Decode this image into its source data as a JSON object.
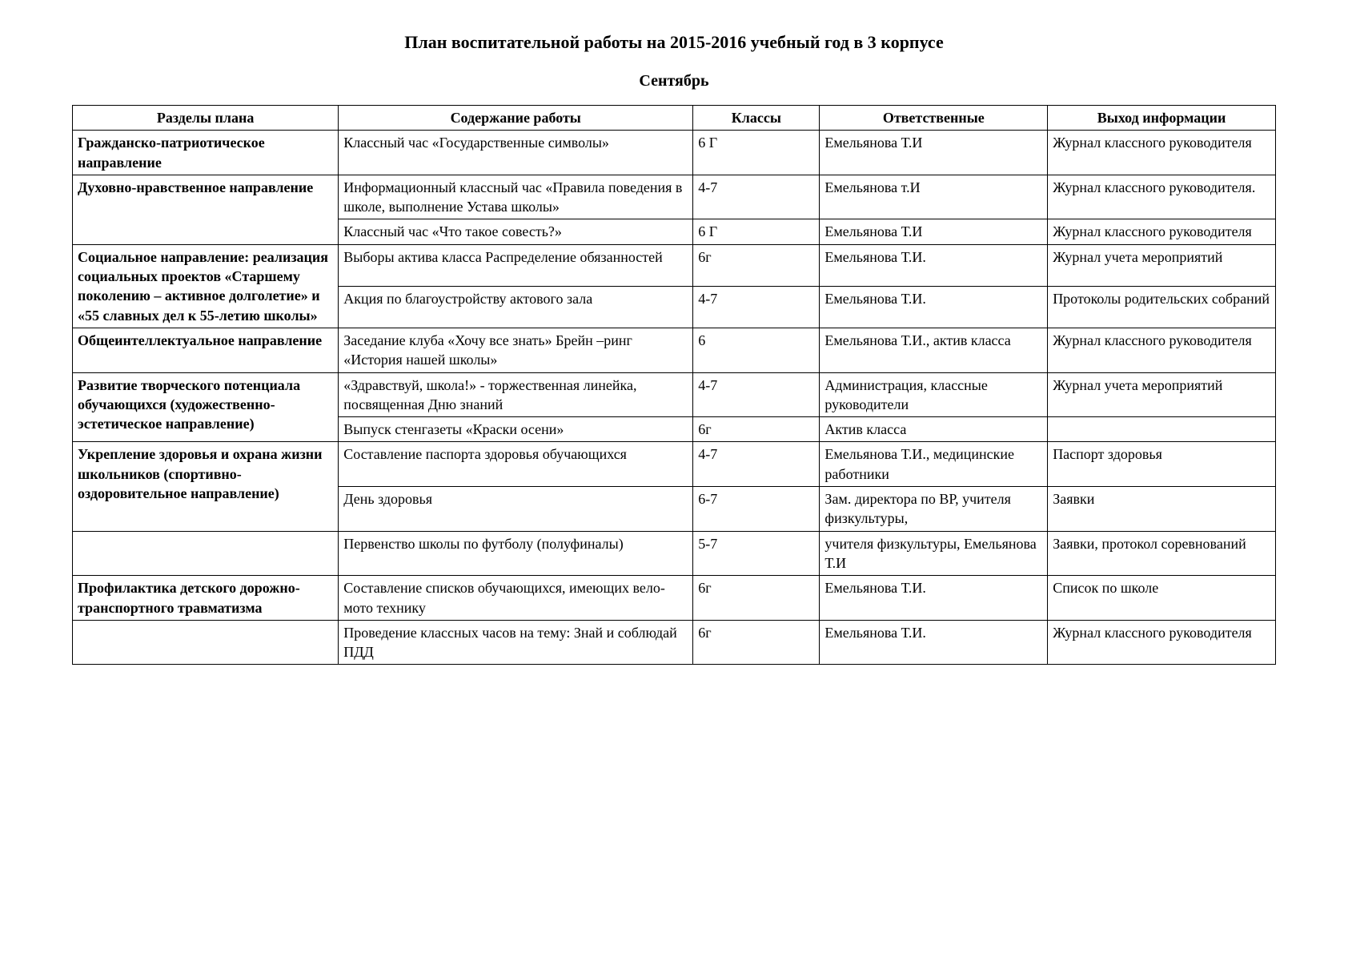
{
  "title": "План воспитательной работы на 2015-2016 учебный год в 3 корпусе",
  "month": "Сентябрь",
  "headers": {
    "section": "Разделы плана",
    "content": "Содержание работы",
    "classes": "Классы",
    "responsible": "Ответственные",
    "output": "Выход информации"
  },
  "sections": [
    {
      "name": "Гражданско-патриотическое направление",
      "rows": [
        {
          "content": "Классный час «Государственные символы»",
          "classes": "6 Г",
          "responsible": "Емельянова Т.И",
          "output": "Журнал классного руководителя"
        }
      ]
    },
    {
      "name": "Духовно-нравственное направление",
      "rows": [
        {
          "content": "Информационный классный час «Правила поведения в школе, выполнение Устава школы»",
          "classes": "4-7",
          "responsible": "Емельянова т.И",
          "output": "Журнал классного руководителя."
        },
        {
          "content": "Классный час «Что такое совесть?»",
          "classes": "6 Г",
          "responsible": "Емельянова Т.И",
          "output": "Журнал классного руководителя"
        }
      ]
    },
    {
      "name": "Социальное направление: реализация социальных проектов «Старшему поколению – активное долголетие» и «55 славных дел к 55-летию школы»",
      "rows": [
        {
          "content": "Выборы актива класса Распределение обязанностей",
          "classes": "6г",
          "responsible": "Емельянова Т.И.",
          "output": "Журнал учета мероприятий"
        },
        {
          "content": "Акция по благоустройству актового зала",
          "classes": "4-7",
          "responsible": "Емельянова Т.И.",
          "output": "Протоколы родительских собраний"
        }
      ]
    },
    {
      "name": "Общеинтеллектуальное направление",
      "rows": [
        {
          "content": "Заседание клуба «Хочу все знать» Брейн –ринг  «История нашей школы»",
          "classes": "6",
          "responsible": "Емельянова Т.И., актив класса",
          "output": "Журнал классного руководителя"
        }
      ]
    },
    {
      "name": "Развитие творческого потенциала обучающихся (художественно-эстетическое направление)",
      "rows": [
        {
          "content": "«Здравствуй, школа!» - торжественная линейка, посвященная Дню знаний",
          "classes": "4-7",
          "responsible": "Администрация, классные руководители",
          "output": "Журнал учета мероприятий"
        },
        {
          "content": "Выпуск стенгазеты «Краски осени»",
          "classes": "6г",
          "responsible": "Актив класса",
          "output": ""
        }
      ]
    },
    {
      "name": "Укрепление здоровья и охрана жизни школьников (спортивно-оздоровительное направление)",
      "rows": [
        {
          "content": "Составление паспорта здоровья обучающихся",
          "classes": "4-7",
          "responsible": "Емельянова Т.И., медицинские работники",
          "output": "Паспорт здоровья"
        },
        {
          "content": "День здоровья",
          "classes": "6-7",
          "responsible": "Зам. директора по ВР, учителя физкультуры,",
          "output": "Заявки"
        }
      ]
    },
    {
      "name": "",
      "rows": [
        {
          "content": "Первенство школы по футболу (полуфиналы)",
          "classes": "5-7",
          "responsible": "учителя физкультуры, Емельянова Т.И",
          "output": "Заявки, протокол соревнований"
        }
      ]
    },
    {
      "name": "Профилактика детского дорожно-транспортного травматизма",
      "rows": [
        {
          "content": "Составление списков обучающихся, имеющих вело-мото технику",
          "classes": "6г",
          "responsible": "Емельянова Т.И.",
          "output": "Список по школе"
        }
      ]
    },
    {
      "name": "",
      "rows": [
        {
          "content": "Проведение классных часов на тему: Знай и соблюдай ПДД",
          "classes": "6г",
          "responsible": "Емельянова Т.И.",
          "output": "Журнал классного руководителя"
        }
      ]
    }
  ],
  "styling": {
    "background_color": "#ffffff",
    "text_color": "#000000",
    "border_color": "#000000",
    "title_fontsize": 22,
    "month_fontsize": 20,
    "cell_fontsize": 18,
    "font_family": "Times New Roman",
    "column_widths_pct": [
      21,
      28,
      10,
      18,
      18
    ]
  }
}
